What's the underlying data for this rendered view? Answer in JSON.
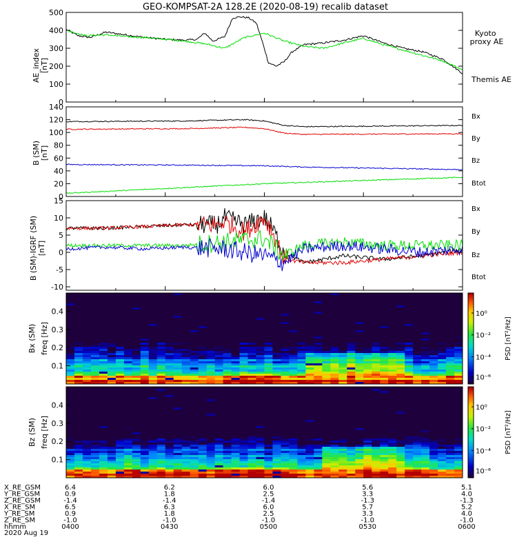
{
  "title": "GEO-KOMPSAT-2A 128.2E (2020-08-19) recalib dataset",
  "colors": {
    "black": "#000000",
    "red": "#e00000",
    "blue": "#0000d0",
    "green": "#00dd00"
  },
  "chart_data": [
    {
      "type": "line",
      "panel": "ae",
      "ylabel": [
        "AE_index",
        "[nT]"
      ],
      "ylim": [
        0,
        500
      ],
      "yticks": [
        "0",
        "100",
        "200",
        "300",
        "400",
        "500"
      ],
      "legend": {
        "kyoto": "Kyoto\nproxy AE",
        "themis": "Themis AE"
      },
      "series": [
        {
          "name": "Themis AE",
          "color": "#000000",
          "x": [
            0,
            0.03,
            0.06,
            0.1,
            0.15,
            0.2,
            0.25,
            0.3,
            0.33,
            0.35,
            0.37,
            0.4,
            0.42,
            0.44,
            0.46,
            0.48,
            0.5,
            0.51,
            0.53,
            0.55,
            0.57,
            0.6,
            0.65,
            0.7,
            0.75,
            0.8,
            0.85,
            0.9,
            0.95,
            1
          ],
          "y": [
            405,
            370,
            360,
            390,
            375,
            360,
            350,
            345,
            350,
            385,
            340,
            365,
            470,
            475,
            470,
            440,
            300,
            220,
            200,
            225,
            280,
            320,
            330,
            345,
            370,
            330,
            300,
            280,
            240,
            160
          ]
        },
        {
          "name": "Kyoto proxy AE",
          "color": "#00dd00",
          "x": [
            0,
            0.05,
            0.1,
            0.15,
            0.2,
            0.25,
            0.3,
            0.35,
            0.4,
            0.45,
            0.5,
            0.55,
            0.6,
            0.65,
            0.7,
            0.75,
            0.8,
            0.85,
            0.9,
            0.95,
            1
          ],
          "y": [
            400,
            370,
            375,
            365,
            360,
            350,
            340,
            325,
            300,
            360,
            385,
            340,
            310,
            300,
            330,
            355,
            320,
            290,
            260,
            230,
            180
          ]
        }
      ]
    },
    {
      "type": "line",
      "panel": "bsm",
      "ylabel": [
        "B (SM)",
        "[nT]"
      ],
      "ylim": [
        0,
        140
      ],
      "yticks": [
        "0",
        "20",
        "40",
        "60",
        "80",
        "100",
        "120",
        "140"
      ],
      "legend": [
        "Bx",
        "By",
        "Bz",
        "Btot"
      ],
      "legend_colors": [
        "#0000d0",
        "#00dd00",
        "#e00000",
        "#000000"
      ],
      "series": [
        {
          "name": "Btot",
          "color": "#000000",
          "x": [
            0,
            0.3,
            0.45,
            0.5,
            0.55,
            0.6,
            1
          ],
          "y": [
            117,
            118,
            120,
            118,
            111,
            109,
            111
          ]
        },
        {
          "name": "Bz",
          "color": "#e00000",
          "x": [
            0,
            0.3,
            0.45,
            0.5,
            0.55,
            0.6,
            1
          ],
          "y": [
            105,
            106,
            108,
            106,
            99,
            97,
            98
          ]
        },
        {
          "name": "Bx",
          "color": "#0000d0",
          "x": [
            0,
            0.3,
            0.5,
            0.6,
            1
          ],
          "y": [
            50,
            49,
            48,
            46,
            42
          ]
        },
        {
          "name": "By",
          "color": "#00dd00",
          "x": [
            0,
            0.5,
            1
          ],
          "y": [
            5,
            20,
            30
          ]
        }
      ]
    },
    {
      "type": "line",
      "panel": "dB",
      "ylabel": [
        "B (SM)-IGRF (SM)",
        "[nT]"
      ],
      "ylim": [
        -11,
        15
      ],
      "yticks": [
        "-10",
        "-5",
        "0",
        "5",
        "10",
        "15"
      ],
      "legend": [
        "Bx",
        "By",
        "Bz",
        "Btot"
      ],
      "legend_colors": [
        "#0000d0",
        "#00dd00",
        "#e00000",
        "#000000"
      ],
      "series": [
        {
          "name": "Btot",
          "color": "#000000",
          "x": [
            0,
            0.1,
            0.2,
            0.3,
            0.38,
            0.4,
            0.45,
            0.5,
            0.52,
            0.55,
            0.6,
            0.7,
            0.8,
            0.9,
            1
          ],
          "y": [
            7,
            7,
            7.5,
            8,
            8,
            10,
            8,
            10,
            7,
            0,
            -3,
            -1,
            -2,
            -1,
            1
          ]
        },
        {
          "name": "Bz",
          "color": "#e00000",
          "x": [
            0,
            0.1,
            0.2,
            0.3,
            0.38,
            0.4,
            0.45,
            0.5,
            0.52,
            0.55,
            0.6,
            0.7,
            0.8,
            0.9,
            1
          ],
          "y": [
            7,
            7,
            7.5,
            8,
            8,
            9,
            6,
            10,
            6,
            -2,
            -3,
            -3,
            -2,
            -1,
            0
          ]
        },
        {
          "name": "By",
          "color": "#00dd00",
          "x": [
            0,
            0.1,
            0.2,
            0.3,
            0.4,
            0.5,
            0.55,
            0.6,
            0.7,
            0.8,
            0.9,
            1
          ],
          "y": [
            2,
            2,
            2,
            2,
            3,
            4,
            -1,
            2,
            3,
            2,
            2,
            2
          ]
        },
        {
          "name": "Bx",
          "color": "#0000d0",
          "x": [
            0,
            0.1,
            0.2,
            0.3,
            0.4,
            0.5,
            0.55,
            0.6,
            0.7,
            0.8,
            0.9,
            1
          ],
          "y": [
            1,
            1.5,
            1,
            1.5,
            1,
            -1,
            -3,
            1,
            2,
            1,
            0,
            1
          ]
        }
      ]
    },
    {
      "type": "heatmap",
      "panel": "bx_spec",
      "ylabel": [
        "Bx (SM)",
        "freq [Hz]"
      ],
      "ylim": [
        0,
        0.5
      ],
      "yticks": [
        "0.1",
        "0.2",
        "0.3",
        "0.4"
      ],
      "colorbar": {
        "label": "PSD [nT²/Hz]",
        "ticks": [
          "10⁰",
          "10⁻²",
          "10⁻⁴",
          "10⁻⁶"
        ]
      },
      "active_window": [
        0.6,
        0.85
      ]
    },
    {
      "type": "heatmap",
      "panel": "bz_spec",
      "ylabel": [
        "Bz (SM)",
        "freq [Hz]"
      ],
      "ylim": [
        0,
        0.5
      ],
      "yticks": [
        "0.1",
        "0.2",
        "0.3",
        "0.4"
      ],
      "colorbar": {
        "label": "PSD [nT²/Hz]",
        "ticks": [
          "10⁰",
          "10⁻²",
          "10⁻⁴",
          "10⁻⁶"
        ]
      },
      "active_window": [
        0.65,
        0.85
      ]
    }
  ],
  "ephemeris": {
    "labels": [
      "X_RE_GSM",
      "Y_RE_GSM",
      "Z_RE_GSM",
      "X_RE_SM",
      "Y_RE_SM",
      "Z_RE_SM",
      "hhmm"
    ],
    "date": "2020 Aug 19",
    "columns": [
      [
        "6.4",
        "0.9",
        "-1.4",
        "6.5",
        "0.9",
        "-1.0",
        "0400"
      ],
      [
        "6.2",
        "1.8",
        "-1.4",
        "6.3",
        "1.8",
        "-1.0",
        "0430"
      ],
      [
        "6.0",
        "2.5",
        "-1.4",
        "6.0",
        "2.5",
        "-1.0",
        "0500"
      ],
      [
        "5.6",
        "3.3",
        "-1.3",
        "5.7",
        "3.3",
        "-1.0",
        "0530"
      ],
      [
        "5.1",
        "4.0",
        "-1.3",
        "5.2",
        "4.0",
        "-1.0",
        "0600"
      ]
    ]
  }
}
